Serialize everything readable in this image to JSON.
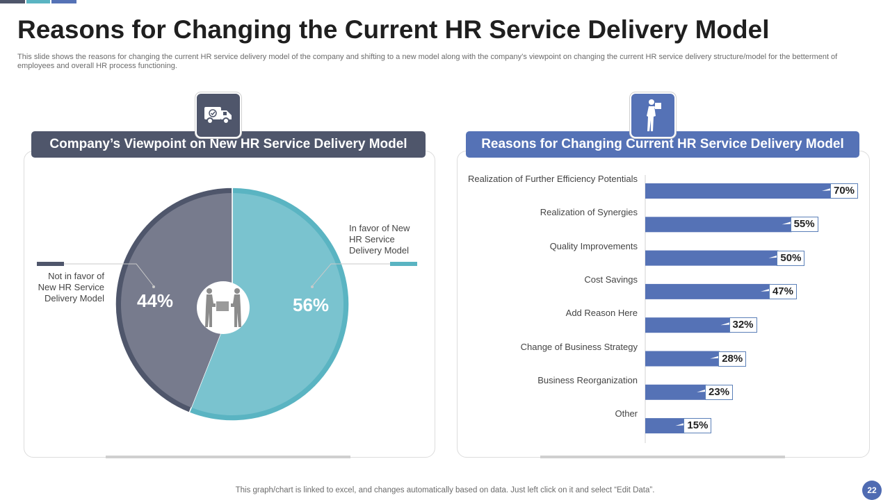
{
  "colors": {
    "dark": "#4f566b",
    "dark_fill": "#777b8d",
    "teal": "#5ab4c2",
    "teal_fill": "#7ac3cf",
    "blue": "#5572b6",
    "page_num": "#4f6bb2",
    "topbar": [
      "#4f566b",
      "#5ab4c2",
      "#5572b6"
    ]
  },
  "slide": {
    "title": "Reasons for Changing the Current HR Service Delivery Model",
    "subtitle": "This slide shows the reasons for changing the current HR service delivery model of the company and shifting to a new model along with the company’s viewpoint on changing the current HR service delivery structure/model for the betterment of employees and overall HR process functioning.",
    "footer_note": "This graph/chart is linked to excel,  and changes automatically based on data. Just left click on it and select “Edit Data”.",
    "page_number": "22"
  },
  "left_panel": {
    "header": "Company’s Viewpoint on New HR Service Delivery Model",
    "icon": "delivery-truck-icon",
    "center_icon": "people-handing-box-icon",
    "label_not_favor": "Not in favor  of New HR Service Delivery  Model",
    "label_favor": "In favor  of New HR Service Delivery  Model",
    "pct_not_favor": "44%",
    "pct_favor": "56%"
  },
  "right_panel": {
    "header": "Reasons for Changing Current HR Service Delivery Model",
    "icon": "delivery-person-icon"
  },
  "chart_data": [
    {
      "type": "pie",
      "title": "Company’s Viewpoint on New HR Service Delivery Model",
      "categories": [
        "Not in favor  of New HR Service Delivery  Model",
        "In favor  of New HR Service Delivery  Model"
      ],
      "values": [
        44,
        56
      ],
      "unit": "%"
    },
    {
      "type": "bar",
      "orientation": "horizontal",
      "title": "Reasons for Changing Current HR Service Delivery Model",
      "categories": [
        "Realization of Further Efficiency Potentials",
        "Realization of Synergies",
        "Quality Improvements",
        "Cost Savings",
        "Add Reason Here",
        "Change of Business Strategy",
        "Business Reorganization",
        "Other"
      ],
      "values": [
        70,
        55,
        50,
        47,
        32,
        28,
        23,
        15
      ],
      "labels": [
        "70%",
        "55%",
        "50%",
        "47%",
        "32%",
        "28%",
        "23%",
        "15%"
      ],
      "xlim": [
        0,
        70
      ],
      "unit": "%"
    }
  ]
}
